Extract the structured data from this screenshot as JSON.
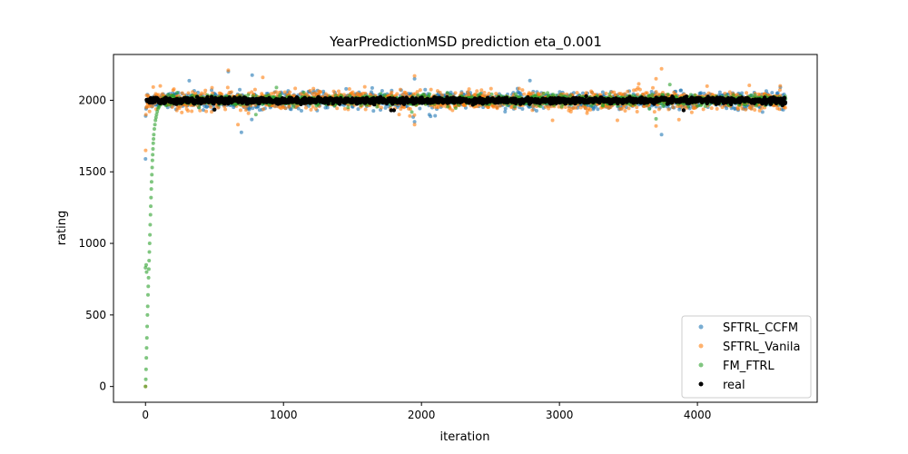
{
  "chart_data": {
    "type": "scatter",
    "title": "YearPredictionMSD prediction eta_0.001",
    "xlabel": "iteration",
    "ylabel": "rating",
    "xlim": [
      -232,
      4868
    ],
    "ylim": [
      -110,
      2320
    ],
    "xticks": [
      0,
      1000,
      2000,
      3000,
      4000
    ],
    "yticks": [
      0,
      500,
      1000,
      1500,
      2000
    ],
    "n_points": 4640,
    "legend_position": "lower-right",
    "grid": false,
    "series": [
      {
        "name": "SFTRL_CCFM",
        "color": "#1f77b4",
        "alpha": 0.6,
        "marker_radius": 2,
        "center": 2000,
        "spread": 28,
        "start_points": [
          [
            0,
            1590
          ],
          [
            1,
            1890
          ],
          [
            4,
            1940
          ],
          [
            7,
            1950
          ]
        ],
        "outliers": [
          [
            1950,
            2150
          ],
          [
            3740,
            1760
          ],
          [
            1950,
            1850
          ],
          [
            600,
            2200
          ]
        ]
      },
      {
        "name": "SFTRL_Vanila",
        "color": "#ff7f0e",
        "alpha": 0.6,
        "marker_radius": 2,
        "center": 2000,
        "spread": 30,
        "start_points": [
          [
            0,
            0
          ],
          [
            1,
            1650
          ],
          [
            3,
            1900
          ],
          [
            6,
            1950
          ]
        ],
        "outliers": [
          [
            600,
            2210
          ],
          [
            850,
            2160
          ],
          [
            1950,
            2170
          ],
          [
            1950,
            1830
          ],
          [
            3740,
            2220
          ],
          [
            3700,
            2150
          ],
          [
            3700,
            1820
          ],
          [
            3420,
            1860
          ],
          [
            670,
            1830
          ],
          [
            2950,
            1860
          ],
          [
            4600,
            2100
          ]
        ]
      },
      {
        "name": "FM_FTRL",
        "color": "#2ca02c",
        "alpha": 0.6,
        "marker_radius": 2,
        "center": 2000,
        "spread": 16,
        "warmup": {
          "points": [
            [
              0,
              0
            ],
            [
              2,
              50
            ],
            [
              4,
              120
            ],
            [
              6,
              200
            ],
            [
              8,
              270
            ],
            [
              10,
              340
            ],
            [
              12,
              420
            ],
            [
              14,
              500
            ],
            [
              16,
              560
            ],
            [
              18,
              640
            ],
            [
              20,
              700
            ],
            [
              22,
              760
            ],
            [
              24,
              820
            ],
            [
              26,
              880
            ],
            [
              28,
              940
            ],
            [
              30,
              1000
            ],
            [
              32,
              1060
            ],
            [
              34,
              1130
            ],
            [
              36,
              1200
            ],
            [
              38,
              1260
            ],
            [
              40,
              1320
            ],
            [
              42,
              1380
            ],
            [
              44,
              1430
            ],
            [
              46,
              1480
            ],
            [
              48,
              1530
            ],
            [
              50,
              1580
            ],
            [
              52,
              1620
            ],
            [
              54,
              1660
            ],
            [
              56,
              1700
            ],
            [
              58,
              1730
            ],
            [
              60,
              1760
            ],
            [
              64,
              1800
            ],
            [
              68,
              1830
            ],
            [
              72,
              1860
            ],
            [
              76,
              1880
            ],
            [
              80,
              1900
            ],
            [
              85,
              1920
            ],
            [
              90,
              1940
            ],
            [
              95,
              1950
            ],
            [
              100,
              1960
            ],
            [
              110,
              1970
            ],
            [
              120,
              1980
            ],
            [
              0,
              830
            ],
            [
              5,
              850
            ],
            [
              8,
              800
            ]
          ]
        },
        "outliers": [
          [
            3700,
            1870
          ],
          [
            3800,
            2110
          ],
          [
            800,
            1900
          ]
        ]
      },
      {
        "name": "real",
        "color": "#000000",
        "alpha": 1.0,
        "marker_radius": 2.2,
        "center": 1998,
        "spread": 10,
        "outliers": [
          [
            1800,
            1930
          ],
          [
            1780,
            1930
          ],
          [
            3900,
            1930
          ],
          [
            500,
            1935
          ]
        ]
      }
    ]
  }
}
